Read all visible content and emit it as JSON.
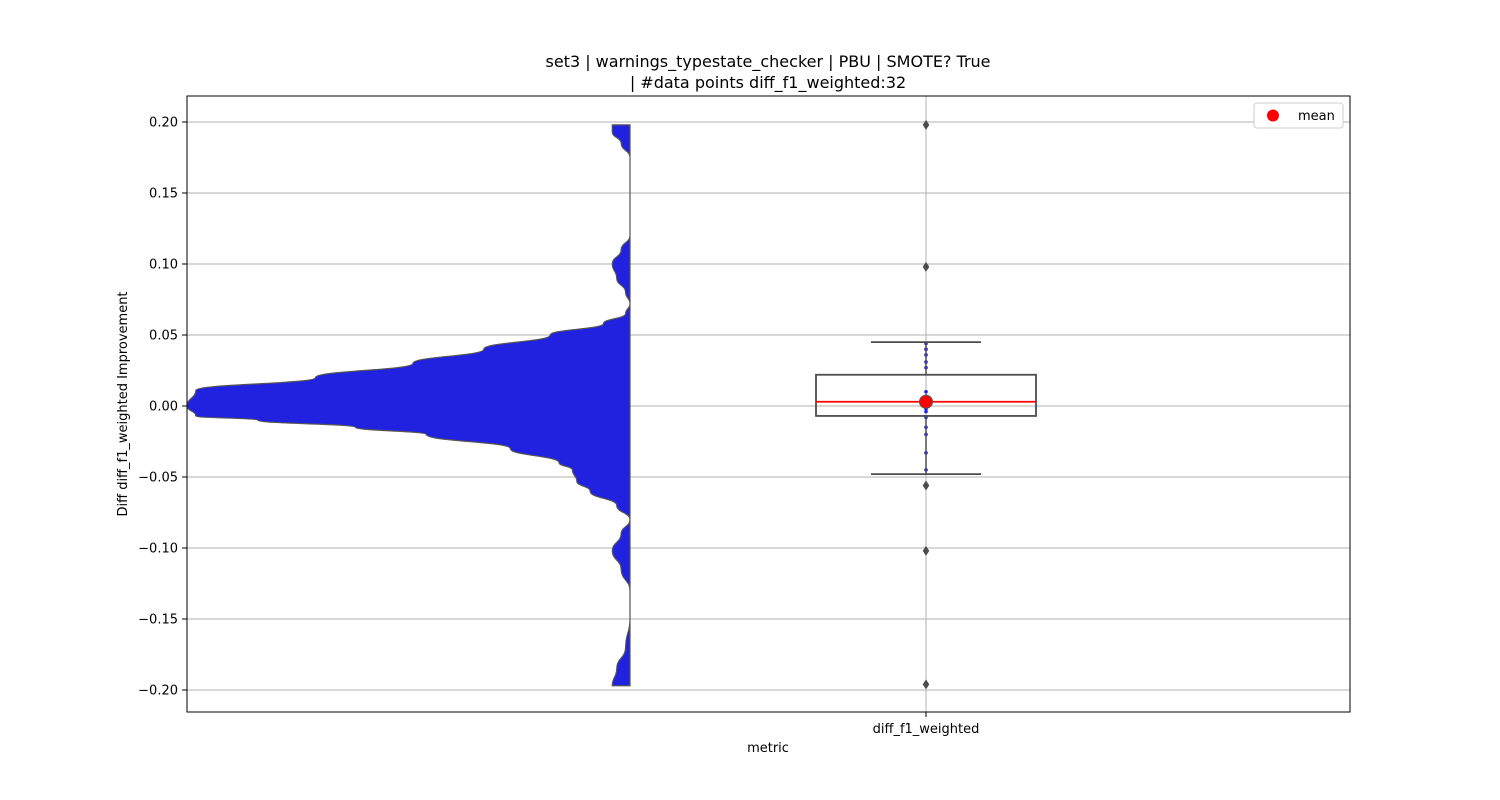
{
  "chart_data": {
    "type": "violin+box",
    "title_line1": "set3 | warnings_typestate_checker | PBU | SMOTE? True",
    "title_line2": "| #data points diff_f1_weighted:32",
    "xlabel": "metric",
    "ylabel": "Diff diff_f1_weighted Improvement",
    "categories": [
      "diff_f1_weighted"
    ],
    "ylim": [
      -0.217,
      0.217
    ],
    "yticks": [
      0.2,
      0.15,
      0.1,
      0.05,
      0.0,
      -0.05,
      -0.1,
      -0.15,
      -0.2
    ],
    "ytick_labels": [
      "0.20",
      "0.15",
      "0.10",
      "0.05",
      "0.00",
      "−0.05",
      "−0.10",
      "−0.15",
      "−0.20"
    ],
    "grid": true,
    "legend": {
      "position": "top-right",
      "entries": [
        {
          "label": "mean",
          "marker": "circle",
          "color": "#ff0000"
        }
      ]
    },
    "violin": {
      "color": "#2121e0",
      "edge_color": "#555555",
      "side": "left",
      "density_profile": [
        {
          "y": -0.197,
          "density": 0.04
        },
        {
          "y": -0.185,
          "density": 0.03
        },
        {
          "y": -0.17,
          "density": 0.01
        },
        {
          "y": -0.15,
          "density": 0.0
        },
        {
          "y": -0.13,
          "density": 0.0
        },
        {
          "y": -0.115,
          "density": 0.02
        },
        {
          "y": -0.102,
          "density": 0.04
        },
        {
          "y": -0.09,
          "density": 0.02
        },
        {
          "y": -0.08,
          "density": 0.0
        },
        {
          "y": -0.07,
          "density": 0.03
        },
        {
          "y": -0.06,
          "density": 0.09
        },
        {
          "y": -0.053,
          "density": 0.12
        },
        {
          "y": -0.045,
          "density": 0.13
        },
        {
          "y": -0.04,
          "density": 0.16
        },
        {
          "y": -0.03,
          "density": 0.27
        },
        {
          "y": -0.02,
          "density": 0.46
        },
        {
          "y": -0.015,
          "density": 0.62
        },
        {
          "y": -0.01,
          "density": 0.84
        },
        {
          "y": -0.007,
          "density": 0.98
        },
        {
          "y": 0.0,
          "density": 1.0
        },
        {
          "y": 0.011,
          "density": 0.98
        },
        {
          "y": 0.02,
          "density": 0.71
        },
        {
          "y": 0.03,
          "density": 0.49
        },
        {
          "y": 0.04,
          "density": 0.33
        },
        {
          "y": 0.05,
          "density": 0.18
        },
        {
          "y": 0.058,
          "density": 0.06
        },
        {
          "y": 0.065,
          "density": 0.01
        },
        {
          "y": 0.072,
          "density": 0.0
        },
        {
          "y": 0.08,
          "density": 0.01
        },
        {
          "y": 0.09,
          "density": 0.03
        },
        {
          "y": 0.1,
          "density": 0.04
        },
        {
          "y": 0.11,
          "density": 0.02
        },
        {
          "y": 0.12,
          "density": 0.0
        },
        {
          "y": 0.14,
          "density": 0.0
        },
        {
          "y": 0.16,
          "density": 0.0
        },
        {
          "y": 0.175,
          "density": 0.0
        },
        {
          "y": 0.185,
          "density": 0.02
        },
        {
          "y": 0.193,
          "density": 0.04
        },
        {
          "y": 0.198,
          "density": 0.04
        }
      ]
    },
    "box": {
      "category": "diff_f1_weighted",
      "q1": -0.007,
      "median": 0.003,
      "q3": 0.022,
      "whisker_low": -0.048,
      "whisker_high": 0.045,
      "mean": 0.003,
      "outliers": [
        0.198,
        0.098,
        -0.056,
        -0.102,
        -0.196
      ]
    },
    "strip_points": [
      0.044,
      0.04,
      0.036,
      0.031,
      0.027,
      0.01,
      0.007,
      0.004,
      0.002,
      0.001,
      0.0,
      -0.002,
      -0.004,
      -0.008,
      -0.015,
      -0.02,
      -0.033,
      -0.045
    ]
  }
}
